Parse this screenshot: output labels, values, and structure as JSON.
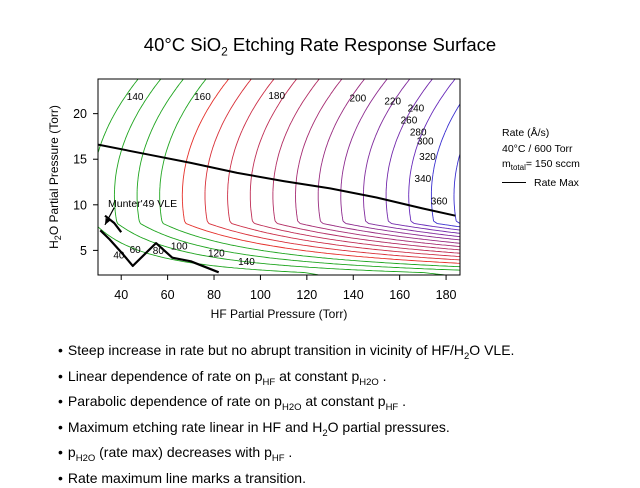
{
  "title": {
    "main": "40°C SiO",
    "sub": "2",
    "rest": " Etching Rate Response Surface"
  },
  "colors": {
    "low_contour": "#1fa51f",
    "mid_contour": "#e5302a",
    "high_contour": "#3a2fd0",
    "rate_max_line": "#000000"
  },
  "legend": {
    "line1": "Rate (Å/s)",
    "line2": "40°C / 600 Torr",
    "line3_m": "m",
    "line3_sub": "total",
    "line3_rest": "= 150 sccm",
    "line4": "Rate Max"
  },
  "bullets": [
    {
      "parts": [
        {
          "t": "Steep increase in rate but no abrupt transition in vicinity of HF/H"
        },
        {
          "t": "2",
          "sub": true
        },
        {
          "t": "O VLE."
        }
      ]
    },
    {
      "parts": [
        {
          "t": "Linear dependence of rate on p"
        },
        {
          "t": "HF",
          "sub": true
        },
        {
          "t": " at constant p"
        },
        {
          "t": "H2O",
          "sub": true
        },
        {
          "t": " ."
        }
      ]
    },
    {
      "parts": [
        {
          "t": "Parabolic dependence of rate on p"
        },
        {
          "t": "H2O",
          "sub": true
        },
        {
          "t": " at constant p"
        },
        {
          "t": "HF",
          "sub": true
        },
        {
          "t": " ."
        }
      ]
    },
    {
      "parts": [
        {
          "t": "Maximum etching rate linear in HF and H"
        },
        {
          "t": "2",
          "sub": true
        },
        {
          "t": "O partial pressures."
        }
      ]
    },
    {
      "parts": [
        {
          "t": "p"
        },
        {
          "t": "H2O",
          "sub": true
        },
        {
          "t": " (rate max) decreases with p"
        },
        {
          "t": "HF",
          "sub": true
        },
        {
          "t": " ."
        }
      ]
    },
    {
      "parts": [
        {
          "t": "Rate maximum line marks a transition."
        }
      ]
    }
  ],
  "chart_data": {
    "type": "contour",
    "xlabel": "HF Partial Pressure (Torr)",
    "ylabel_parts": [
      {
        "t": "H"
      },
      {
        "t": "2",
        "sub": true
      },
      {
        "t": "O Partial Pressure (Torr)"
      }
    ],
    "xlim": [
      30,
      186
    ],
    "ylim": [
      2.3,
      23.8
    ],
    "xticks": [
      40,
      60,
      80,
      100,
      120,
      140,
      160,
      180
    ],
    "yticks": [
      5,
      10,
      15,
      20
    ],
    "contour_levels": [
      40,
      60,
      80,
      100,
      120,
      140,
      160,
      180,
      200,
      220,
      240,
      260,
      280,
      300,
      320,
      340,
      360
    ],
    "contour_labels": [
      {
        "text": "140",
        "x": 46,
        "y": 21.9
      },
      {
        "text": "160",
        "x": 75,
        "y": 21.9
      },
      {
        "text": "180",
        "x": 107,
        "y": 22.0
      },
      {
        "text": "200",
        "x": 142,
        "y": 21.7
      },
      {
        "text": "220",
        "x": 157,
        "y": 21.4
      },
      {
        "text": "240",
        "x": 167,
        "y": 20.6
      },
      {
        "text": "260",
        "x": 164,
        "y": 19.3
      },
      {
        "text": "280",
        "x": 168,
        "y": 18.0
      },
      {
        "text": "300",
        "x": 171,
        "y": 17.0
      },
      {
        "text": "320",
        "x": 172,
        "y": 15.3
      },
      {
        "text": "340",
        "x": 170,
        "y": 12.9
      },
      {
        "text": "360",
        "x": 177,
        "y": 10.4
      },
      {
        "text": "40",
        "x": 39,
        "y": 4.5
      },
      {
        "text": "60",
        "x": 46,
        "y": 5.1
      },
      {
        "text": "80",
        "x": 56,
        "y": 5.0
      },
      {
        "text": "100",
        "x": 65,
        "y": 5.5
      },
      {
        "text": "120",
        "x": 81,
        "y": 4.7
      },
      {
        "text": "140",
        "x": 94,
        "y": 3.8
      }
    ],
    "rate_max_line": {
      "x": [
        30,
        52,
        70,
        90,
        110,
        130,
        150,
        170,
        184
      ],
      "y": [
        16.6,
        15.5,
        14.6,
        13.5,
        12.6,
        11.8,
        10.8,
        9.6,
        8.8
      ]
    },
    "vle_label": "Munter'49 VLE",
    "vle_line_upper": {
      "x": [
        33,
        37,
        40
      ],
      "y": [
        8.8,
        8.0,
        7.0
      ]
    },
    "vle_line_lower": {
      "x": [
        31,
        35,
        40,
        45,
        55,
        62,
        70,
        82
      ],
      "y": [
        7.2,
        6.2,
        4.8,
        3.3,
        5.8,
        4.2,
        3.8,
        2.6
      ]
    },
    "vle_arrow": {
      "from": {
        "x": 37,
        "y": 9.7
      },
      "to": {
        "x": 33,
        "y": 7.8
      }
    }
  }
}
